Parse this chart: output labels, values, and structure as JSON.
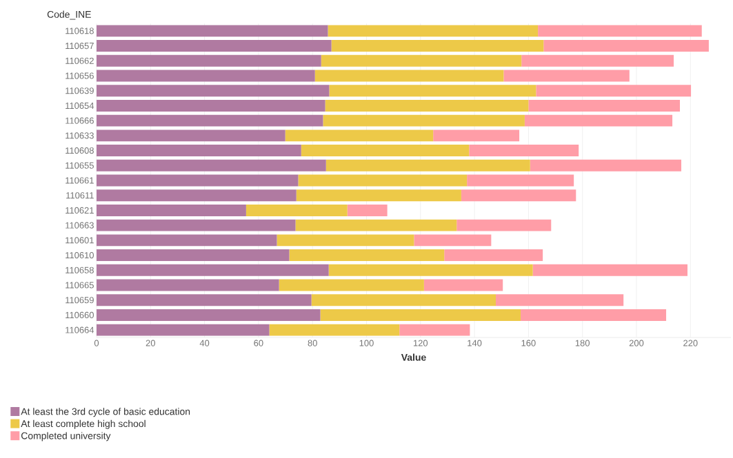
{
  "chart_data": {
    "type": "bar",
    "orientation": "horizontal",
    "stacked": true,
    "xlabel": "Value",
    "ylabel": "Code_INE",
    "categories": [
      "110618",
      "110657",
      "110662",
      "110656",
      "110639",
      "110654",
      "110666",
      "110633",
      "110608",
      "110655",
      "110661",
      "110611",
      "110621",
      "110663",
      "110601",
      "110610",
      "110658",
      "110665",
      "110659",
      "110660",
      "110664"
    ],
    "series": [
      {
        "name": "At least the 3rd cycle of basic education",
        "color": "#b07aa1",
        "values": [
          85.7,
          87.0,
          83.2,
          80.9,
          86.2,
          84.7,
          83.9,
          69.9,
          75.8,
          85.0,
          74.7,
          74.0,
          55.4,
          73.7,
          66.8,
          71.4,
          86.0,
          67.6,
          79.6,
          82.9,
          64.0
        ]
      },
      {
        "name": "At least complete high school",
        "color": "#edc948",
        "values": [
          77.8,
          78.6,
          74.2,
          69.9,
          76.6,
          75.3,
          74.7,
          54.8,
          62.2,
          75.6,
          62.5,
          61.1,
          37.5,
          59.7,
          50.8,
          57.4,
          75.6,
          53.7,
          68.3,
          74.2,
          48.2
        ]
      },
      {
        "name": "Completed university",
        "color": "#ff9da7",
        "values": [
          60.7,
          61.2,
          56.4,
          46.6,
          57.4,
          56.1,
          54.7,
          31.9,
          40.6,
          56.0,
          39.6,
          42.5,
          14.8,
          35.0,
          28.6,
          36.5,
          57.3,
          29.2,
          47.3,
          53.9,
          26.1
        ]
      }
    ],
    "xlim": [
      0,
      235
    ],
    "xticks": [
      0,
      20,
      40,
      60,
      80,
      100,
      120,
      140,
      160,
      180,
      200,
      220
    ],
    "grid": "x",
    "legend": "bottom"
  }
}
